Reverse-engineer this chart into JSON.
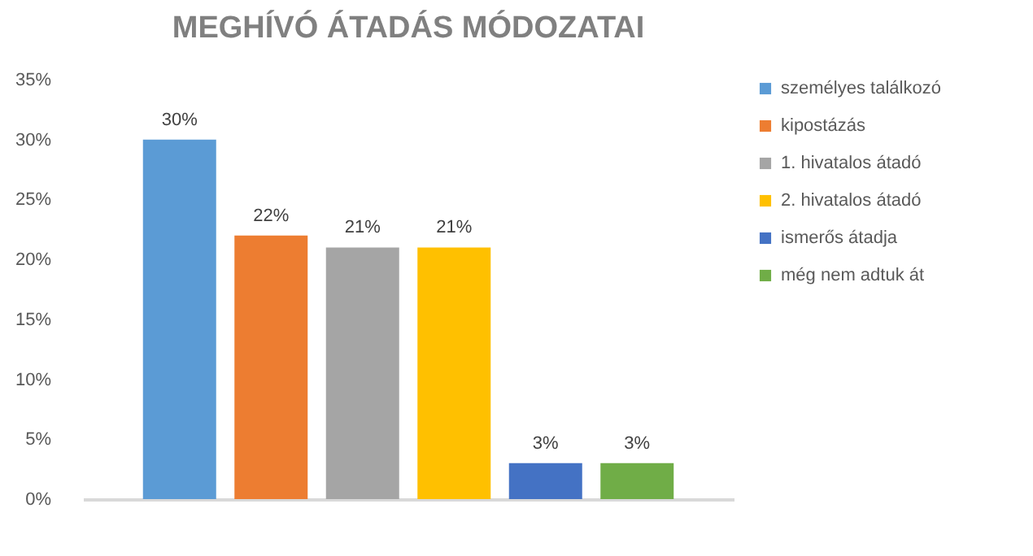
{
  "chart_data": {
    "type": "bar",
    "title": "MEGHÍVÓ ÁTADÁS MÓDOZATAI",
    "categories": [
      null
    ],
    "series": [
      {
        "name": "személyes találkozó",
        "color": "#5b9bd5",
        "values": [
          30
        ],
        "value_labels": [
          "30%"
        ]
      },
      {
        "name": "kipostázás",
        "color": "#ed7d31",
        "values": [
          22
        ],
        "value_labels": [
          "22%"
        ]
      },
      {
        "name": "1. hivatalos átadó",
        "color": "#a5a5a5",
        "values": [
          21
        ],
        "value_labels": [
          "21%"
        ]
      },
      {
        "name": "2. hivatalos átadó",
        "color": "#ffc000",
        "values": [
          21
        ],
        "value_labels": [
          "21%"
        ]
      },
      {
        "name": "ismerős átadja",
        "color": "#4472c4",
        "values": [
          3
        ],
        "value_labels": [
          "3%"
        ]
      },
      {
        "name": "még nem adtuk át",
        "color": "#70ad47",
        "values": [
          3
        ],
        "value_labels": [
          "3%"
        ]
      }
    ],
    "ylim": [
      0,
      35
    ],
    "yticks": [
      {
        "value": 0,
        "label": "0%"
      },
      {
        "value": 5,
        "label": "5%"
      },
      {
        "value": 10,
        "label": "10%"
      },
      {
        "value": 15,
        "label": "15%"
      },
      {
        "value": 20,
        "label": "20%"
      },
      {
        "value": 25,
        "label": "25%"
      },
      {
        "value": 30,
        "label": "30%"
      },
      {
        "value": 35,
        "label": "35%"
      }
    ],
    "legend": "right",
    "tick_labels": "y"
  }
}
